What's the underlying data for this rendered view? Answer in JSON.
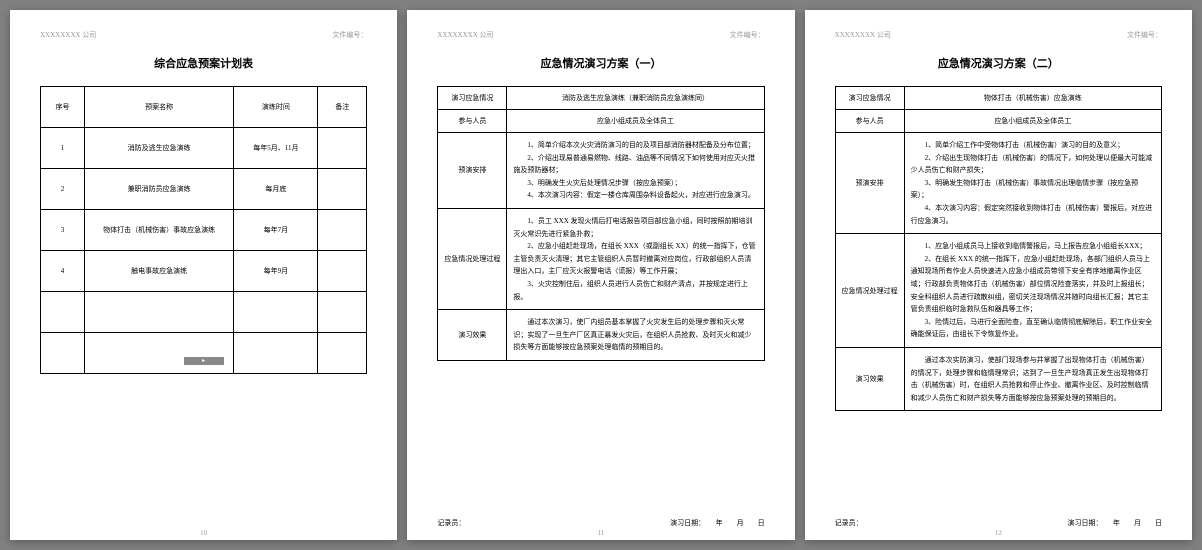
{
  "header": {
    "company": "XXXXXXXX 公司",
    "docno_label": "文件编号："
  },
  "page1": {
    "title": "综合应急预案计划表",
    "cols": [
      "序号",
      "预案名称",
      "演练时间",
      "备注"
    ],
    "rows": [
      [
        "1",
        "消防及逃生应急演练",
        "每年5月、11月",
        ""
      ],
      [
        "2",
        "兼职消防员应急演练",
        "每月底",
        ""
      ],
      [
        "3",
        "物体打击（机械伤害）事故应急演练",
        "每年7月",
        ""
      ],
      [
        "4",
        "触电事故应急演练",
        "每年9月",
        ""
      ],
      [
        "",
        "",
        "",
        ""
      ],
      [
        "",
        "",
        "",
        ""
      ]
    ],
    "pageno": "10"
  },
  "page2": {
    "title": "应急情况演习方案（一）",
    "r1_label": "演习应急情况",
    "r1_val": "消防及逃生应急演练（兼职消防员应急演练同）",
    "r2_label": "参与人员",
    "r2_val": "应急小组成员及全体员工",
    "r3_label": "预演安排",
    "r3_val": "　　1、简单介绍本次火灾消防演习的目的及项目部消防器材配备及分布位置；\n　　2、介绍出现易普通易燃物、线路、油品等不同情况下如何使用对应灭火措施及预防器材；\n　　3、明确发生火灾后处理情况步骤（按应急预案）；\n　　4、本次演习内容：假定一楼仓库周围杂料设备起火，对应进行应急演习。",
    "r4_label": "应急情况处理过程",
    "r4_val": "　　1、员工 XXX 发现火情后打电话报告项目部应急小组，同时按照前期培训灭火常识先进行紧急扑救；\n　　2、应急小组赶赴现场，在组长 XXX（或副组长 XX）的统一指挥下，仓管主管负责灭火清理；其它主管组织人员暂时撤离对应岗位，行政部组织人员清理出入口，主厂应灭火报警电话〈谎报〉等工作开展；\n　　3、火灾控制住后，组织人员进行人员伤亡和财产清点，并按规定进行上报。",
    "r5_label": "演习效果",
    "r5_val": "　　通过本次演习，使厂内组员基本掌握了火灾发生后的处理步骤和灭火常识；实现了一旦生产厂区真正暴发火灾后，在组织人员抢救、及时灭火和减少损失等方面能够按应急预案处理临情的预期目的。",
    "footer_left": "记录员：",
    "footer_right": "演习日期：　　年　　月　　日",
    "pageno": "11"
  },
  "page3": {
    "title": "应急情况演习方案（二）",
    "r1_label": "演习应急情况",
    "r1_val": "物体打击（机械伤害）应急演练",
    "r2_label": "参与人员",
    "r2_val": "应急小组成员及全体员工",
    "r3_label": "预演安排",
    "r3_val": "　　1、简单介绍工作中受物体打击（机械伤害）演习的目的及意义；\n　　2、介绍出生现物体打击（机械伤害）的情况下，如何处理以便最大可能减少人员伤亡和财产损失；\n　　3、明确发生物体打击（机械伤害）事故情况出理临情步骤（按应急预案）；\n　　4、本次演习内容：假定突然接收到物体打击（机械伤害）警报后，对应进行应急演习。",
    "r4_label": "应急情况处理过程",
    "r4_val": "　　1、应急小组成员马上接收到临情警报后，马上报告应急小组组长XXX；\n　　2、在组长 XXX 的统一指挥下，应急小组赶赴现场，各部门组织人员马上通知现场所有作业人员快速进入应急小组成员带领下安全有序地撤离作业区域；行政部负责物体打击（机械伤害）部位情况险查落实，并及时上报组长；安全科组织人员进行疏散纠组，密切关注现场情况并随时向组长汇报；其它主管负责组织临时急救队伍和器具等工作；\n　　3、险情过后，马进行全面险查，直至确认临情彻底解除后，职工作业安全确能保证后，由组长下令恢复作业。",
    "r5_label": "演习效果",
    "r5_val": "　　通过本次实防演习，使部门现场参与并掌握了出现物体打击（机械伤害）的情况下，处理步骤和临情理常识；达到了一旦生产现场真正发生出现物体打击（机械伤害）时，在组织人员抢救和停止作业、撤离作业区、及时控制临情和减少人员伤亡和财产损失等方面能够按应急预案处理的预期目的。",
    "footer_left": "记录员：",
    "footer_right": "演习日期：　　年　　月　　日",
    "pageno": "12"
  }
}
